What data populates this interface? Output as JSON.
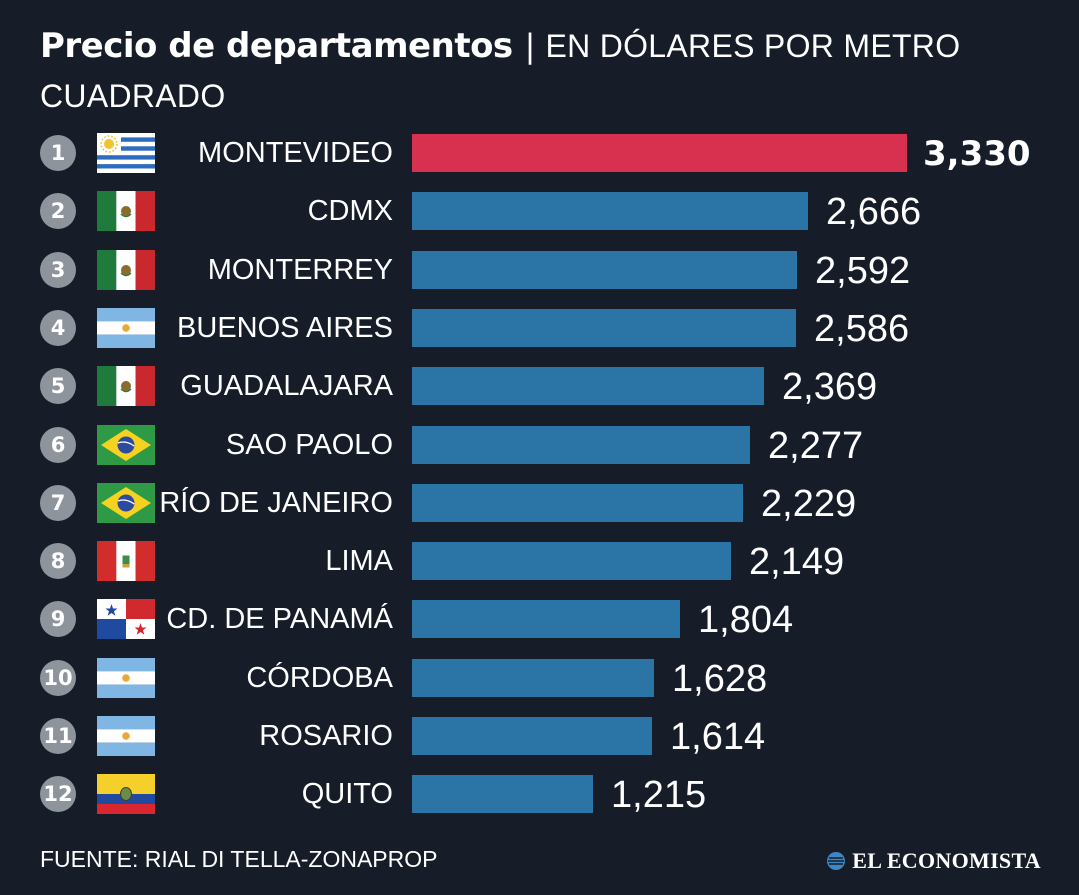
{
  "header": {
    "title": "Precio de departamentos",
    "separator": "|",
    "subtitle": "EN DÓLARES POR METRO CUADRADO"
  },
  "chart_data": {
    "type": "bar",
    "orientation": "horizontal",
    "title": "Precio de departamentos",
    "subtitle": "EN DÓLARES POR METRO CUADRADO",
    "categories": [
      "MONTEVIDEO",
      "CDMX",
      "MONTERREY",
      "BUENOS AIRES",
      "GUADALAJARA",
      "SAO PAOLO",
      "RÍO DE JANEIRO",
      "LIMA",
      "CD. DE PANAMÁ",
      "CÓRDOBA",
      "ROSARIO",
      "QUITO"
    ],
    "values": [
      3330,
      2666,
      2592,
      2586,
      2369,
      2277,
      2229,
      2149,
      1804,
      1628,
      1614,
      1215
    ],
    "value_labels": [
      "3,330",
      "2,666",
      "2,592",
      "2,586",
      "2,369",
      "2,277",
      "2,229",
      "2,149",
      "1,804",
      "1,628",
      "1,614",
      "1,215"
    ],
    "ranks": [
      "1",
      "2",
      "3",
      "4",
      "5",
      "6",
      "7",
      "8",
      "9",
      "10",
      "11",
      "12"
    ],
    "flags": [
      "uruguay-flag-icon",
      "mexico-flag-icon",
      "mexico-flag-icon",
      "argentina-flag-icon",
      "mexico-flag-icon",
      "brazil-flag-icon",
      "brazil-flag-icon",
      "peru-flag-icon",
      "panama-flag-icon",
      "argentina-flag-icon",
      "argentina-flag-icon",
      "ecuador-flag-icon"
    ],
    "highlight_index": 0,
    "colors": {
      "background": "#161d29",
      "bar": "#2b74a6",
      "highlight_bar": "#d8304f",
      "rank_badge": "#8e949c",
      "text": "#ffffff"
    },
    "xlim": [
      0,
      3330
    ],
    "grid": false
  },
  "footer": {
    "source": "FUENTE: RIAL DI TELLA-ZONAPROP",
    "brand": "EL ECONOMISTA"
  }
}
